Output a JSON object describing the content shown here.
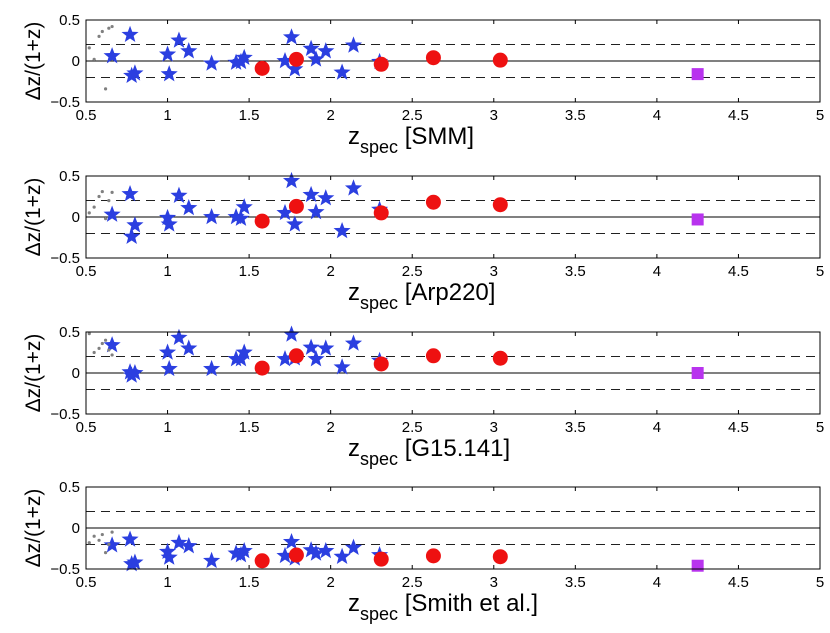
{
  "chart_data": [
    {
      "type": "scatter",
      "panel": "SMM",
      "xlabel_main": "z",
      "xlabel_sub": "spec",
      "xlabel_suffix": "[SMM]",
      "ylabel": "Δz/(1+z)",
      "xlim": [
        0.5,
        5
      ],
      "ylim": [
        -0.5,
        0.5
      ],
      "xticks": [
        "0.5",
        "1",
        "1.5",
        "2",
        "2.5",
        "3",
        "3.5",
        "4",
        "4.5",
        "5"
      ],
      "yticks": [
        "0.5",
        "0",
        "−0.5"
      ],
      "reference_lines": {
        "solid": 0,
        "dashed": [
          0.2,
          -0.2
        ]
      },
      "series": [
        {
          "name": "stars",
          "marker": "star",
          "color": "#2b3fe0",
          "x": [
            0.66,
            0.77,
            0.78,
            0.8,
            1.0,
            1.01,
            1.07,
            1.13,
            1.27,
            1.42,
            1.45,
            1.47,
            1.72,
            1.76,
            1.78,
            1.88,
            1.91,
            1.97,
            2.07,
            2.14,
            2.3
          ],
          "y": [
            0.06,
            0.32,
            -0.18,
            -0.15,
            0.08,
            -0.16,
            0.25,
            0.12,
            -0.03,
            -0.02,
            -0.01,
            0.04,
            0.0,
            0.29,
            -0.1,
            0.15,
            0.02,
            0.12,
            -0.14,
            0.19,
            -0.01
          ]
        },
        {
          "name": "circles",
          "marker": "circle",
          "color": "#ee1111",
          "x": [
            1.58,
            1.79,
            2.31,
            2.63,
            3.04
          ],
          "y": [
            -0.09,
            0.02,
            -0.04,
            0.04,
            0.01
          ]
        },
        {
          "name": "square",
          "marker": "square",
          "color": "#b833ee",
          "x": [
            4.25
          ],
          "y": [
            -0.16
          ]
        },
        {
          "name": "dots",
          "marker": "dot",
          "color": "#808080",
          "x": [
            0.52,
            0.55,
            0.58,
            0.6,
            0.62,
            0.64,
            0.66
          ],
          "y": [
            0.16,
            0.02,
            0.3,
            0.36,
            -0.34,
            0.4,
            0.42
          ]
        }
      ]
    },
    {
      "type": "scatter",
      "panel": "Arp220",
      "xlabel_main": "z",
      "xlabel_sub": "spec",
      "xlabel_suffix": "[Arp220]",
      "ylabel": "Δz/(1+z)",
      "xlim": [
        0.5,
        5
      ],
      "ylim": [
        -0.5,
        0.5
      ],
      "xticks": [
        "0.5",
        "1",
        "1.5",
        "2",
        "2.5",
        "3",
        "3.5",
        "4",
        "4.5",
        "5"
      ],
      "yticks": [
        "0.5",
        "0",
        "−0.5"
      ],
      "reference_lines": {
        "solid": 0,
        "dashed": [
          0.2,
          -0.2
        ]
      },
      "series": [
        {
          "name": "stars",
          "marker": "star",
          "color": "#2b3fe0",
          "x": [
            0.66,
            0.77,
            0.78,
            0.8,
            1.0,
            1.01,
            1.07,
            1.13,
            1.27,
            1.42,
            1.45,
            1.47,
            1.72,
            1.76,
            1.78,
            1.88,
            1.91,
            1.97,
            2.07,
            2.14,
            2.3
          ],
          "y": [
            0.03,
            0.28,
            -0.24,
            -0.1,
            -0.01,
            -0.09,
            0.26,
            0.11,
            0.0,
            0.0,
            -0.02,
            0.12,
            0.05,
            0.44,
            -0.09,
            0.27,
            0.06,
            0.23,
            -0.17,
            0.35,
            0.09
          ]
        },
        {
          "name": "circles",
          "marker": "circle",
          "color": "#ee1111",
          "x": [
            1.58,
            1.79,
            2.31,
            2.63,
            3.04
          ],
          "y": [
            -0.05,
            0.13,
            0.05,
            0.18,
            0.15
          ]
        },
        {
          "name": "square",
          "marker": "square",
          "color": "#b833ee",
          "x": [
            4.25
          ],
          "y": [
            -0.03
          ]
        },
        {
          "name": "dots",
          "marker": "dot",
          "color": "#808080",
          "x": [
            0.52,
            0.55,
            0.58,
            0.6,
            0.62,
            0.64,
            0.66
          ],
          "y": [
            0.05,
            0.12,
            0.25,
            0.31,
            -0.02,
            0.2,
            0.3
          ]
        }
      ]
    },
    {
      "type": "scatter",
      "panel": "G15.141",
      "xlabel_main": "z",
      "xlabel_sub": "spec",
      "xlabel_suffix": "[G15.141]",
      "ylabel": "Δz/(1+z)",
      "xlim": [
        0.5,
        5
      ],
      "ylim": [
        -0.5,
        0.5
      ],
      "xticks": [
        "0.5",
        "1",
        "1.5",
        "2",
        "2.5",
        "3",
        "3.5",
        "4",
        "4.5",
        "5"
      ],
      "yticks": [
        "0.5",
        "0",
        "−0.5"
      ],
      "reference_lines": {
        "solid": 0,
        "dashed": [
          0.2,
          -0.2
        ]
      },
      "series": [
        {
          "name": "stars",
          "marker": "star",
          "color": "#2b3fe0",
          "x": [
            0.66,
            0.77,
            0.78,
            0.8,
            1.0,
            1.01,
            1.07,
            1.13,
            1.27,
            1.42,
            1.45,
            1.47,
            1.72,
            1.76,
            1.78,
            1.88,
            1.91,
            1.97,
            2.07,
            2.14,
            2.3
          ],
          "y": [
            0.34,
            0.01,
            -0.03,
            0.0,
            0.25,
            0.05,
            0.43,
            0.3,
            0.05,
            0.17,
            0.17,
            0.25,
            0.17,
            0.47,
            0.18,
            0.31,
            0.17,
            0.3,
            0.07,
            0.36,
            0.15
          ]
        },
        {
          "name": "circles",
          "marker": "circle",
          "color": "#ee1111",
          "x": [
            1.58,
            1.79,
            2.31,
            2.63,
            3.04
          ],
          "y": [
            0.06,
            0.21,
            0.11,
            0.21,
            0.18
          ]
        },
        {
          "name": "square",
          "marker": "square",
          "color": "#b833ee",
          "x": [
            4.25
          ],
          "y": [
            0.0
          ]
        },
        {
          "name": "dots",
          "marker": "dot",
          "color": "#808080",
          "x": [
            0.52,
            0.55,
            0.58,
            0.6,
            0.62,
            0.64,
            0.66
          ],
          "y": [
            0.48,
            0.25,
            0.3,
            0.36,
            0.4,
            0.28,
            0.22
          ]
        }
      ]
    },
    {
      "type": "scatter",
      "panel": "Smith et al.",
      "xlabel_main": "z",
      "xlabel_sub": "spec",
      "xlabel_suffix": "[Smith et al.]",
      "ylabel": "Δz/(1+z)",
      "xlim": [
        0.5,
        5
      ],
      "ylim": [
        -0.5,
        0.5
      ],
      "xticks": [
        "0.5",
        "1",
        "1.5",
        "2",
        "2.5",
        "3",
        "3.5",
        "4",
        "4.5",
        "5"
      ],
      "yticks": [
        "0.5",
        "0",
        "−0.5"
      ],
      "reference_lines": {
        "solid": 0,
        "dashed": [
          0.2,
          -0.2
        ]
      },
      "series": [
        {
          "name": "stars",
          "marker": "star",
          "color": "#2b3fe0",
          "x": [
            0.66,
            0.77,
            0.78,
            0.8,
            1.0,
            1.01,
            1.07,
            1.13,
            1.27,
            1.42,
            1.45,
            1.47,
            1.72,
            1.76,
            1.78,
            1.88,
            1.91,
            1.97,
            2.07,
            2.14,
            2.3
          ],
          "y": [
            -0.21,
            -0.14,
            -0.44,
            -0.42,
            -0.29,
            -0.36,
            -0.18,
            -0.22,
            -0.4,
            -0.31,
            -0.33,
            -0.28,
            -0.34,
            -0.17,
            -0.37,
            -0.27,
            -0.31,
            -0.28,
            -0.35,
            -0.24,
            -0.33
          ]
        },
        {
          "name": "circles",
          "marker": "circle",
          "color": "#ee1111",
          "x": [
            1.58,
            1.79,
            2.31,
            2.63,
            3.04
          ],
          "y": [
            -0.4,
            -0.33,
            -0.38,
            -0.34,
            -0.35
          ]
        },
        {
          "name": "square",
          "marker": "square",
          "color": "#b833ee",
          "x": [
            4.25
          ],
          "y": [
            -0.46
          ]
        },
        {
          "name": "dots",
          "marker": "dot",
          "color": "#808080",
          "x": [
            0.52,
            0.55,
            0.58,
            0.6,
            0.62,
            0.64,
            0.66
          ],
          "y": [
            -0.18,
            -0.1,
            -0.15,
            -0.08,
            -0.3,
            -0.2,
            -0.05
          ]
        }
      ]
    }
  ]
}
